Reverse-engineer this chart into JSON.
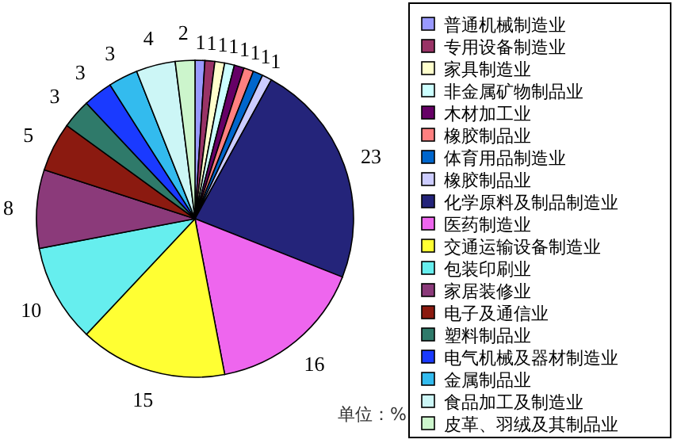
{
  "chart_data": {
    "type": "pie",
    "categories": [
      "普通机械制造业",
      "专用设备制造业",
      "家具制造业",
      "非金属矿物制品业",
      "木材加工业",
      "橡胶制品业",
      "体育用品制造业",
      "橡胶制品业",
      "化学原料及制品制造业",
      "医药制造业",
      "交通运输设备制造业",
      "包装印刷业",
      "家居装修业",
      "电子及通信业",
      "塑料制品业",
      "电气机械及器材制造业",
      "金属制品业",
      "食品加工及制造业",
      "皮革、羽绒及其制品业"
    ],
    "values": [
      1,
      1,
      1,
      1,
      1,
      1,
      1,
      1,
      23,
      16,
      15,
      10,
      8,
      5,
      3,
      3,
      3,
      4,
      2
    ],
    "colors": [
      "#9999ff",
      "#993366",
      "#ffffcc",
      "#ccffff",
      "#660066",
      "#ff8080",
      "#0066cc",
      "#ccccff",
      "#24247a",
      "#ee66ee",
      "#ffff33",
      "#66eeee",
      "#8b3a7a",
      "#8b1a10",
      "#2f7a6a",
      "#1a3aff",
      "#33bbee",
      "#ccf6f6",
      "#ccf5cc"
    ],
    "data_labels": true,
    "legend": "right",
    "annotations": [
      "单位：%"
    ]
  }
}
